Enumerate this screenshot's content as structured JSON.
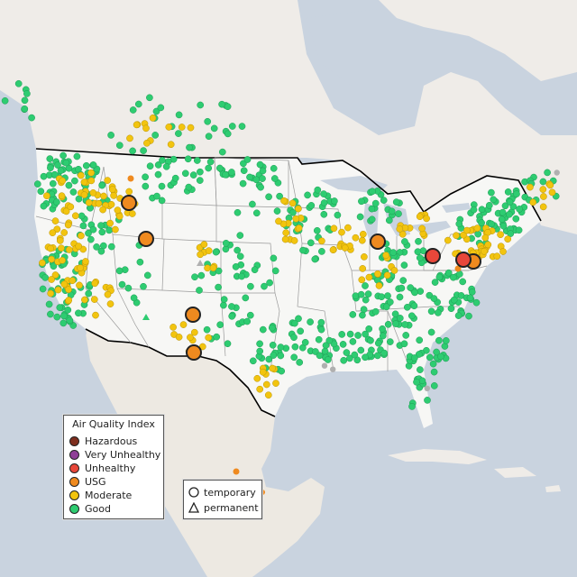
{
  "legend": {
    "title": "Air Quality Index",
    "categories": [
      {
        "label": "Hazardous",
        "color": "#7e2e1e"
      },
      {
        "label": "Very Unhealthy",
        "color": "#8f3f97"
      },
      {
        "label": "Unhealthy",
        "color": "#e8473a"
      },
      {
        "label": "USG",
        "color": "#ef8a1f"
      },
      {
        "label": "Moderate",
        "color": "#f2c40f"
      },
      {
        "label": "Good",
        "color": "#2ecc71"
      }
    ]
  },
  "site_type_legend": {
    "items": [
      {
        "label": "temporary",
        "shape": "circle"
      },
      {
        "label": "permanent",
        "shape": "triangle"
      }
    ]
  },
  "colors": {
    "land": "#f2f1ee",
    "water": "#c9d3df",
    "us_land": "#f7f7f5",
    "mexico_land": "#ede9e2",
    "border": "#000000",
    "state_lines": "#9a9a9a",
    "no_data": "#b0b0b0"
  }
}
